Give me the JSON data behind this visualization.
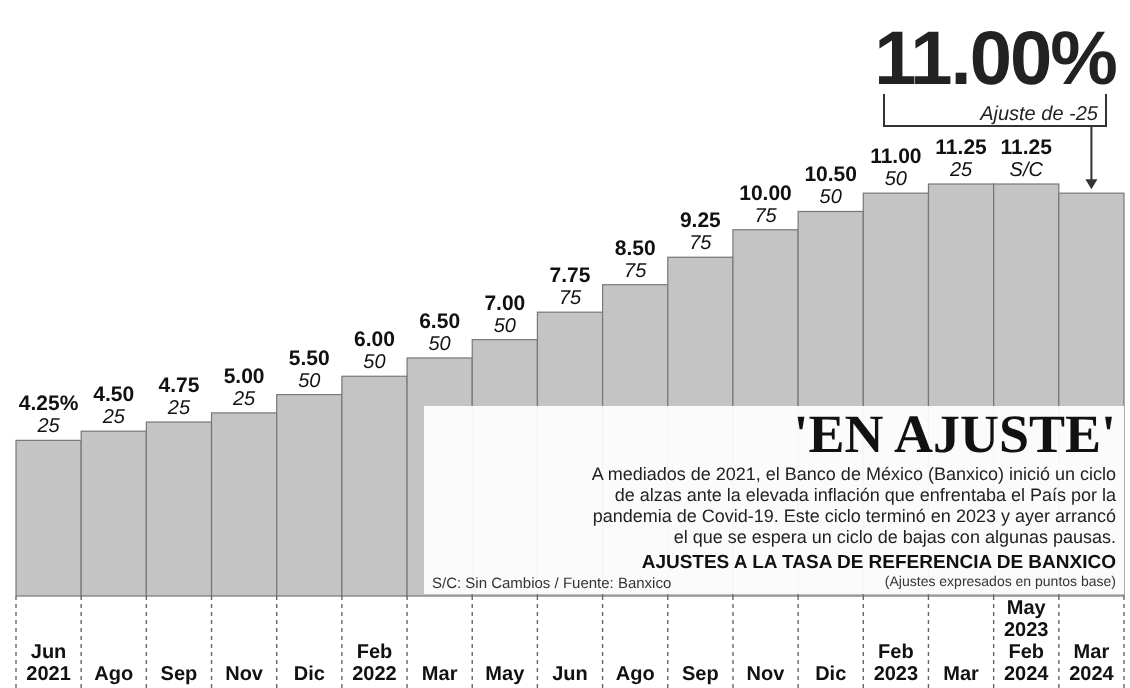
{
  "chart_data": {
    "type": "bar",
    "title": "'EN AJUSTE'",
    "subtitle": "A mediados de 2021, el Banco de México (Banxico) inició un ciclo de alzas ante la elevada inflación que enfrentaba el País por la pandemia de Covid-19. Este ciclo terminó en 2023 y ayer arrancó el que se espera un ciclo de bajas con algunas pausas.",
    "annotations": [
      "AJUSTES A LA TASA DE REFERENCIA DE BANXICO",
      "(Ajustes expresados en puntos base)",
      "S/C: Sin Cambios / Fuente: Banxico"
    ],
    "categories": [
      "Jun\n2021",
      "Ago",
      "Sep",
      "Nov",
      "Dic",
      "Feb\n2022",
      "Mar",
      "May",
      "Jun",
      "Ago",
      "Sep",
      "Nov",
      "Dic",
      "Feb\n2023",
      "Mar",
      "May\n2023\nFeb\n2024",
      "Mar\n2024"
    ],
    "values": [
      4.25,
      4.5,
      4.75,
      5.0,
      5.5,
      6.0,
      6.5,
      7.0,
      7.75,
      8.5,
      9.25,
      10.0,
      10.5,
      11.0,
      11.25,
      11.25,
      11.0
    ],
    "value_labels": [
      "4.25%\n25",
      "4.50\n25",
      "4.75\n25",
      "5.00\n25",
      "5.50\n50",
      "6.00\n50",
      "6.50\n50",
      "7.00\n50",
      "7.75\n75",
      "8.50\n75",
      "9.25\n75",
      "10.00\n75",
      "10.50\n50",
      "11.00\n50",
      "11.25\n25",
      "11.25\nS/C",
      "11.00%\nAjuste de -25"
    ],
    "color": "#c4c4c4"
  }
}
